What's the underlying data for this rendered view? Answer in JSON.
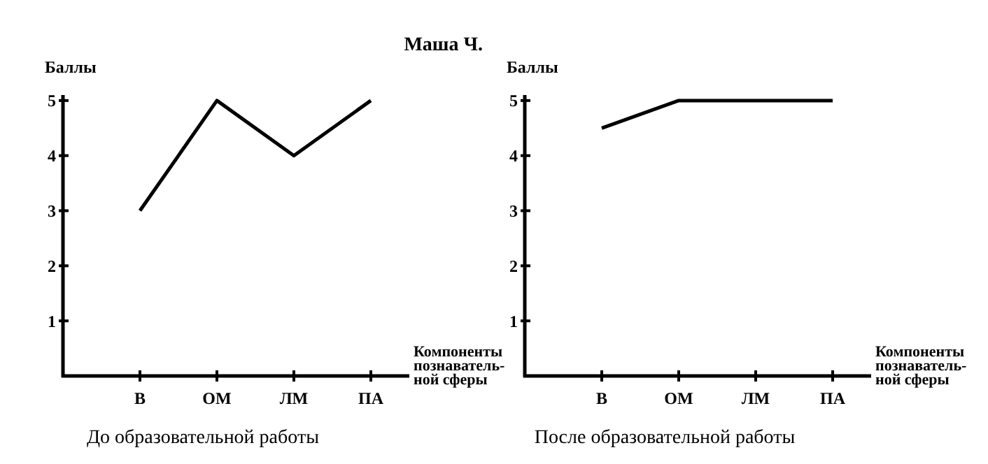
{
  "chart_data": [
    {
      "type": "line",
      "title": "Маша Ч.",
      "subtitle": "До образовательной работы",
      "ylabel": "Баллы",
      "xlabel": "Компоненты познаватель-ной сферы",
      "categories": [
        "В",
        "ОМ",
        "ЛМ",
        "ПА"
      ],
      "series": [
        {
          "color": "#000000",
          "values": [
            3,
            5,
            4,
            5
          ]
        }
      ],
      "ylim": [
        0,
        5.1
      ],
      "yticks": [
        1,
        2,
        3,
        4,
        5
      ],
      "grid": false,
      "marker": "none",
      "line_style": "solid"
    },
    {
      "type": "line",
      "subtitle": "После образовательной работы",
      "ylabel": "Баллы",
      "xlabel": "Компоненты познаватель-ной сферы",
      "categories": [
        "В",
        "ОМ",
        "ЛМ",
        "ПА"
      ],
      "series": [
        {
          "color": "#000000",
          "values": [
            4.5,
            5,
            5,
            5
          ]
        }
      ],
      "ylim": [
        0,
        5.1
      ],
      "yticks": [
        1,
        2,
        3,
        4,
        5
      ],
      "grid": false,
      "marker": "none",
      "line_style": "solid"
    }
  ]
}
